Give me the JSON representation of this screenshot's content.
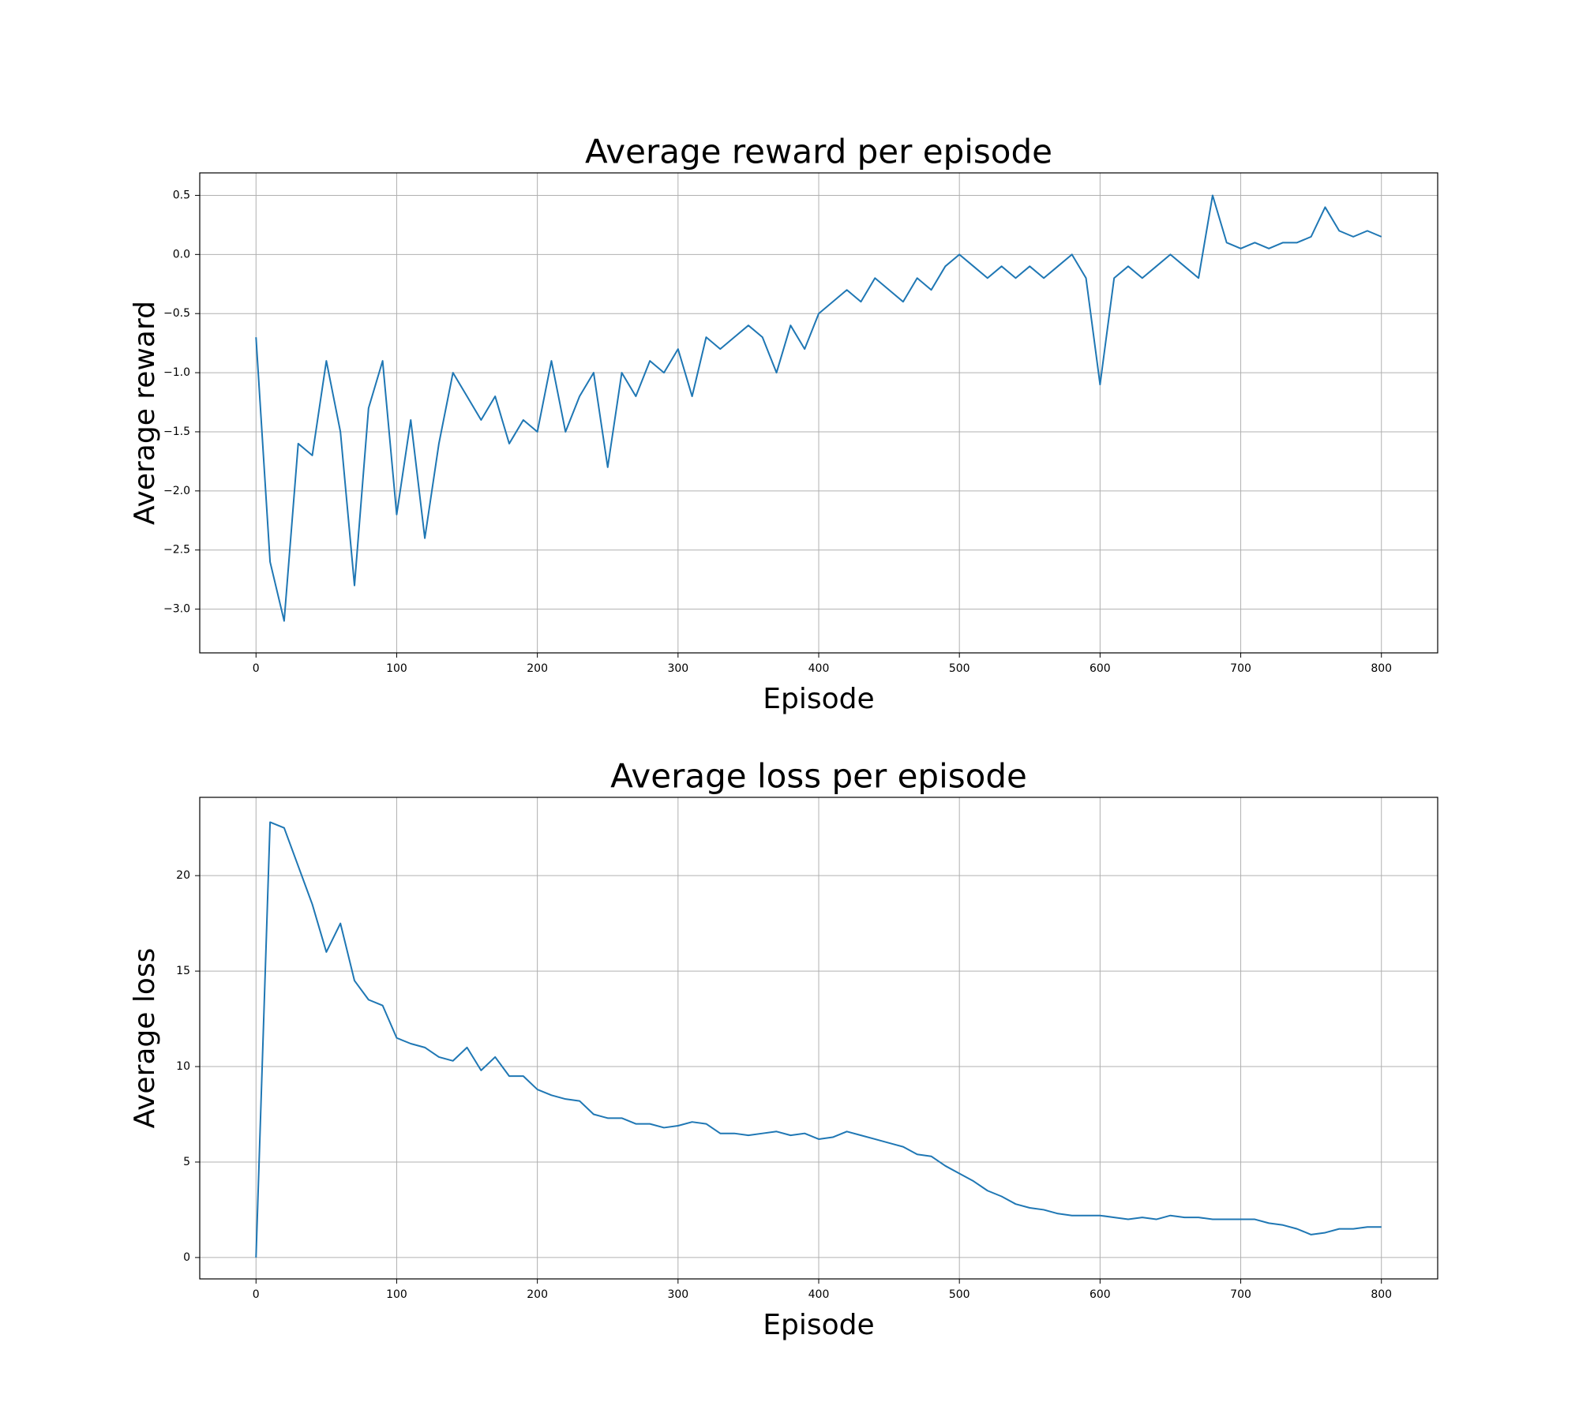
{
  "chart_data": [
    {
      "type": "line",
      "title": "Average reward per episode",
      "x_label": "Episode",
      "y_label": "Average reward",
      "color": "#1f77b4",
      "grid": true,
      "xlim": [
        -40,
        840
      ],
      "ylim": [
        -3.37,
        0.69
      ],
      "xticks": [
        0,
        100,
        200,
        300,
        400,
        500,
        600,
        700,
        800
      ],
      "yticks": [
        {
          "value": -3.0,
          "label": "−3.0"
        },
        {
          "value": -2.5,
          "label": "−2.5"
        },
        {
          "value": -2.0,
          "label": "−2.0"
        },
        {
          "value": -1.5,
          "label": "−1.5"
        },
        {
          "value": -1.0,
          "label": "−1.0"
        },
        {
          "value": -0.5,
          "label": "−0.5"
        },
        {
          "value": 0.0,
          "label": "0.0"
        },
        {
          "value": 0.5,
          "label": "0.5"
        }
      ],
      "x": [
        0,
        10,
        20,
        30,
        40,
        50,
        60,
        70,
        80,
        90,
        100,
        110,
        120,
        130,
        140,
        150,
        160,
        170,
        180,
        190,
        200,
        210,
        220,
        230,
        240,
        250,
        260,
        270,
        280,
        290,
        300,
        310,
        320,
        330,
        340,
        350,
        360,
        370,
        380,
        390,
        400,
        410,
        420,
        430,
        440,
        450,
        460,
        470,
        480,
        490,
        500,
        510,
        520,
        530,
        540,
        550,
        560,
        570,
        580,
        590,
        600,
        610,
        620,
        630,
        640,
        650,
        660,
        670,
        680,
        690,
        700,
        710,
        720,
        730,
        740,
        750,
        760,
        770,
        780,
        790,
        800
      ],
      "values": [
        -0.7,
        -2.6,
        -3.1,
        -1.6,
        -1.7,
        -0.9,
        -1.5,
        -2.8,
        -1.3,
        -0.9,
        -2.2,
        -1.4,
        -2.4,
        -1.6,
        -1.0,
        -1.2,
        -1.4,
        -1.2,
        -1.6,
        -1.4,
        -1.5,
        -0.9,
        -1.5,
        -1.2,
        -1.0,
        -1.8,
        -1.0,
        -1.2,
        -0.9,
        -1.0,
        -0.8,
        -1.2,
        -0.7,
        -0.8,
        -0.7,
        -0.6,
        -0.7,
        -1.0,
        -0.6,
        -0.8,
        -0.5,
        -0.4,
        -0.3,
        -0.4,
        -0.2,
        -0.3,
        -0.4,
        -0.2,
        -0.3,
        -0.1,
        0.0,
        -0.1,
        -0.2,
        -0.1,
        -0.2,
        -0.1,
        -0.2,
        -0.1,
        0.0,
        -0.2,
        -1.1,
        -0.2,
        -0.1,
        -0.2,
        -0.1,
        0.0,
        -0.1,
        -0.2,
        0.5,
        0.1,
        0.05,
        0.1,
        0.05,
        0.1,
        0.1,
        0.15,
        0.4,
        0.2,
        0.15,
        0.2,
        0.15
      ]
    },
    {
      "type": "line",
      "title": "Average loss per episode",
      "x_label": "Episode",
      "y_label": "Average loss",
      "color": "#1f77b4",
      "grid": true,
      "xlim": [
        -40,
        840
      ],
      "ylim": [
        -1.12,
        24.1
      ],
      "xticks": [
        0,
        100,
        200,
        300,
        400,
        500,
        600,
        700,
        800
      ],
      "yticks": [
        0,
        5,
        10,
        15,
        20
      ],
      "x": [
        0,
        10,
        20,
        30,
        40,
        50,
        60,
        70,
        80,
        90,
        100,
        110,
        120,
        130,
        140,
        150,
        160,
        170,
        180,
        190,
        200,
        210,
        220,
        230,
        240,
        250,
        260,
        270,
        280,
        290,
        300,
        310,
        320,
        330,
        340,
        350,
        360,
        370,
        380,
        390,
        400,
        410,
        420,
        430,
        440,
        450,
        460,
        470,
        480,
        490,
        500,
        510,
        520,
        530,
        540,
        550,
        560,
        570,
        580,
        590,
        600,
        610,
        620,
        630,
        640,
        650,
        660,
        670,
        680,
        690,
        700,
        710,
        720,
        730,
        740,
        750,
        760,
        770,
        780,
        790,
        800
      ],
      "values": [
        0,
        22.8,
        22.5,
        20.5,
        18.5,
        16,
        17.5,
        14.5,
        13.5,
        13.2,
        11.5,
        11.2,
        11,
        10.5,
        10.3,
        11,
        9.8,
        10.5,
        9.5,
        9.5,
        8.8,
        8.5,
        8.3,
        8.2,
        7.5,
        7.3,
        7.3,
        7.0,
        7.0,
        6.8,
        6.9,
        7.1,
        7.0,
        6.5,
        6.5,
        6.4,
        6.5,
        6.6,
        6.4,
        6.5,
        6.2,
        6.3,
        6.6,
        6.4,
        6.2,
        6.0,
        5.8,
        5.4,
        5.3,
        4.8,
        4.4,
        4.0,
        3.5,
        3.2,
        2.8,
        2.6,
        2.5,
        2.3,
        2.2,
        2.2,
        2.2,
        2.1,
        2.0,
        2.1,
        2.0,
        2.2,
        2.1,
        2.1,
        2.0,
        2.0,
        2.0,
        2.0,
        1.8,
        1.7,
        1.5,
        1.2,
        1.3,
        1.5,
        1.5,
        1.6,
        1.6
      ]
    }
  ]
}
